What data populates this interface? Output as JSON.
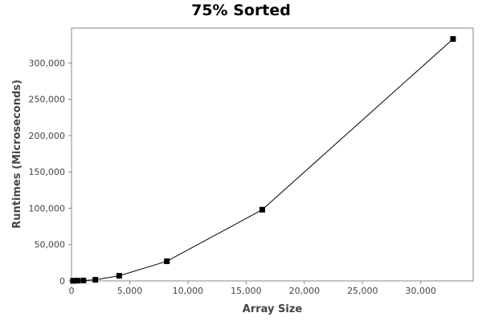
{
  "chart_data": {
    "type": "line",
    "title": "75% Sorted",
    "xlabel": "Array Size",
    "ylabel": "Runtimes (Microseconds)",
    "xlim": [
      0,
      34500
    ],
    "ylim": [
      0,
      348000
    ],
    "xticks": [
      0,
      5000,
      10000,
      15000,
      20000,
      25000,
      30000
    ],
    "xtick_labels": [
      "0",
      "5,000",
      "10,000",
      "15,000",
      "20,000",
      "25,000",
      "30,000"
    ],
    "yticks": [
      0,
      50000,
      100000,
      150000,
      200000,
      250000,
      300000
    ],
    "ytick_labels": [
      "0",
      "50,000",
      "100,000",
      "150,000",
      "200,000",
      "250,000",
      "300,000"
    ],
    "grid": false,
    "series": [
      {
        "x": [
          128,
          256,
          512,
          1024,
          2048,
          4096,
          8192,
          16384,
          32768
        ],
        "y": [
          100,
          200,
          300,
          500,
          1500,
          7000,
          27000,
          98000,
          333000
        ],
        "color": "#000000",
        "marker": "square"
      }
    ]
  }
}
